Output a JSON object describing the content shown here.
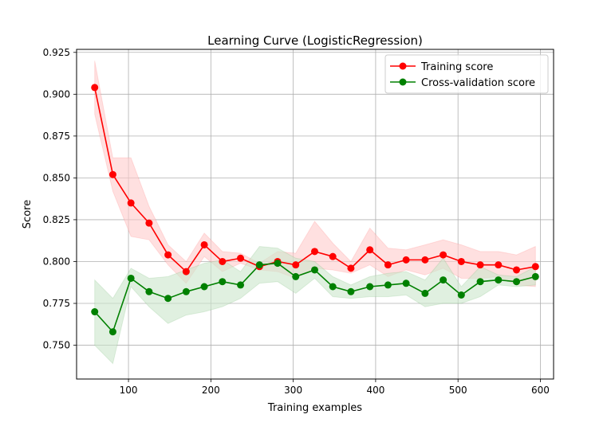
{
  "chart_data": {
    "type": "line",
    "title": "Learning Curve (LogisticRegression)",
    "xlabel": "Training examples",
    "ylabel": "Score",
    "xlim": [
      37,
      616
    ],
    "ylim": [
      0.7298,
      0.9268
    ],
    "xticks": [
      100,
      200,
      300,
      400,
      500,
      600
    ],
    "xtick_labels": [
      "100",
      "200",
      "300",
      "400",
      "500",
      "600"
    ],
    "yticks": [
      0.75,
      0.775,
      0.8,
      0.825,
      0.85,
      0.875,
      0.9,
      0.925
    ],
    "ytick_labels": [
      "0.750",
      "0.775",
      "0.800",
      "0.825",
      "0.850",
      "0.875",
      "0.900",
      "0.925"
    ],
    "grid": true,
    "legend_position": "top-right",
    "x": [
      59,
      81,
      103,
      125,
      148,
      170,
      192,
      214,
      236,
      259,
      281,
      303,
      326,
      348,
      370,
      393,
      415,
      437,
      460,
      482,
      504,
      527,
      549,
      571,
      594
    ],
    "series": [
      {
        "name": "Training score",
        "color": "#ff0000",
        "values": [
          0.904,
          0.852,
          0.835,
          0.823,
          0.804,
          0.794,
          0.81,
          0.8,
          0.802,
          0.797,
          0.8,
          0.798,
          0.806,
          0.803,
          0.796,
          0.807,
          0.798,
          0.801,
          0.801,
          0.804,
          0.8,
          0.798,
          0.798,
          0.795,
          0.797
        ],
        "lower": [
          0.888,
          0.842,
          0.815,
          0.813,
          0.798,
          0.787,
          0.803,
          0.794,
          0.799,
          0.795,
          0.794,
          0.79,
          0.796,
          0.795,
          0.793,
          0.798,
          0.791,
          0.795,
          0.792,
          0.796,
          0.79,
          0.79,
          0.791,
          0.786,
          0.785
        ],
        "upper": [
          0.92,
          0.862,
          0.862,
          0.833,
          0.81,
          0.8,
          0.817,
          0.806,
          0.805,
          0.799,
          0.806,
          0.805,
          0.824,
          0.811,
          0.8,
          0.82,
          0.808,
          0.807,
          0.81,
          0.813,
          0.81,
          0.806,
          0.806,
          0.804,
          0.809
        ],
        "band_color": "#ffcccc"
      },
      {
        "name": "Cross-validation score",
        "color": "#008000",
        "values": [
          0.77,
          0.758,
          0.79,
          0.782,
          0.778,
          0.782,
          0.785,
          0.788,
          0.786,
          0.798,
          0.799,
          0.791,
          0.795,
          0.785,
          0.782,
          0.785,
          0.786,
          0.787,
          0.781,
          0.789,
          0.78,
          0.788,
          0.789,
          0.788,
          0.791
        ],
        "lower": [
          0.75,
          0.739,
          0.785,
          0.773,
          0.763,
          0.768,
          0.77,
          0.773,
          0.778,
          0.787,
          0.788,
          0.781,
          0.79,
          0.779,
          0.778,
          0.779,
          0.779,
          0.78,
          0.773,
          0.775,
          0.775,
          0.779,
          0.786,
          0.785,
          0.786
        ],
        "upper": [
          0.789,
          0.778,
          0.796,
          0.79,
          0.791,
          0.795,
          0.799,
          0.801,
          0.794,
          0.809,
          0.808,
          0.802,
          0.8,
          0.791,
          0.786,
          0.791,
          0.793,
          0.794,
          0.789,
          0.802,
          0.785,
          0.797,
          0.792,
          0.791,
          0.797
        ],
        "band_color": "#cce6cc"
      }
    ]
  }
}
